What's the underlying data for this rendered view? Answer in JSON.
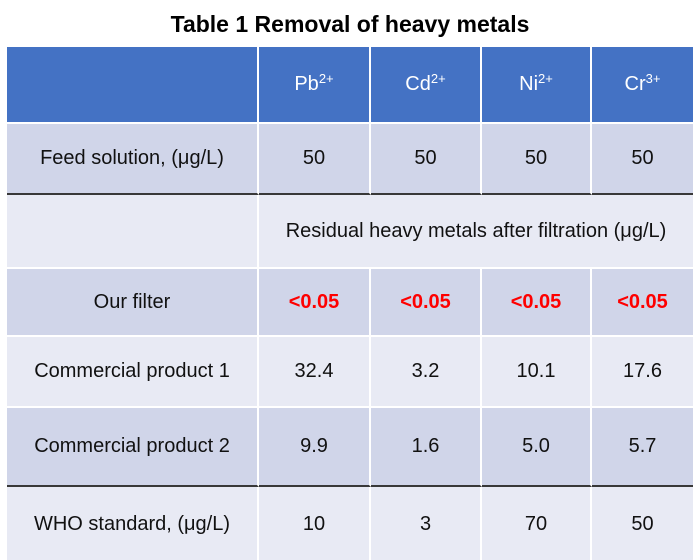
{
  "title": "Table 1 Removal of heavy metals",
  "colors": {
    "header_blue": "#4472C4",
    "band_dark": "#D0D5E9",
    "band_light": "#E8EAF4",
    "grid_white": "#FFFFFF",
    "separator_dark": "#383838",
    "highlight_red": "#FE0000",
    "header_text": "#FFFFFF",
    "body_text": "#111111"
  },
  "table": {
    "header": {
      "ions": [
        {
          "base": "Pb",
          "charge": "2+"
        },
        {
          "base": "Cd",
          "charge": "2+"
        },
        {
          "base": "Ni",
          "charge": "2+"
        },
        {
          "base": "Cr",
          "charge": "3+"
        }
      ]
    },
    "section_note": "Residual heavy metals after filtration (μg/L)",
    "rows": [
      {
        "label": "Feed solution, (μg/L)",
        "values": [
          "50",
          "50",
          "50",
          "50"
        ]
      },
      {
        "label": "Our filter",
        "values": [
          "<0.05",
          "<0.05",
          "<0.05",
          "<0.05"
        ],
        "highlight": "red-bold"
      },
      {
        "label": "Commercial product 1",
        "values": [
          "32.4",
          "3.2",
          "10.1",
          "17.6"
        ]
      },
      {
        "label": "Commercial product 2",
        "values": [
          "9.9",
          "1.6",
          "5.0",
          "5.7"
        ]
      },
      {
        "label": "WHO standard, (μg/L)",
        "values": [
          "10",
          "3",
          "70",
          "50"
        ]
      }
    ]
  },
  "chart_data": {
    "type": "table",
    "title": "Table 1 Removal of heavy metals",
    "columns": [
      "",
      "Pb2+",
      "Cd2+",
      "Ni2+",
      "Cr3+"
    ],
    "rows": [
      [
        "Feed solution, (μg/L)",
        "50",
        "50",
        "50",
        "50"
      ],
      [
        "Residual heavy metals after filtration (μg/L)",
        "",
        "",
        "",
        ""
      ],
      [
        "Our filter",
        "<0.05",
        "<0.05",
        "<0.05",
        "<0.05"
      ],
      [
        "Commercial product 1",
        "32.4",
        "3.2",
        "10.1",
        "17.6"
      ],
      [
        "Commercial product 2",
        "9.9",
        "1.6",
        "5.0",
        "5.7"
      ],
      [
        "WHO standard, (μg/L)",
        "10",
        "3",
        "70",
        "50"
      ]
    ],
    "layout_hints": {
      "our_filter_values_color": "red bold",
      "dark_separator_below": [
        "Feed solution, (μg/L)",
        "Commercial product 2"
      ],
      "section_note_spans_data_columns": true
    }
  }
}
